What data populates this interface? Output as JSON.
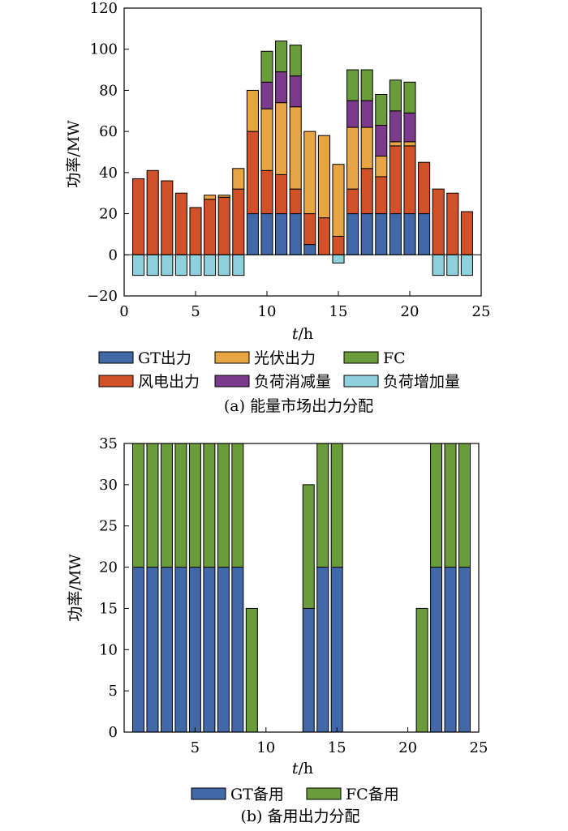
{
  "colors": {
    "gt": "#4169a8",
    "wind": "#d15129",
    "pv": "#e8a543",
    "fc": "#6b9c3b",
    "load_cut": "#7c3a8c",
    "load_add": "#8fd0dd"
  },
  "chart_data": [
    {
      "type": "bar",
      "stacked": true,
      "caption": "(a)  能量市场出力分配",
      "ylabel": "功率/MW",
      "xlabel_italic": "t",
      "xlabel_unit": "/h",
      "xlim": [
        0,
        25
      ],
      "ylim": [
        -20,
        120
      ],
      "xticks": [
        "0",
        "5",
        "10",
        "15",
        "20",
        "25"
      ],
      "yticks": [
        "−20",
        "0",
        "20",
        "40",
        "60",
        "80",
        "100",
        "120"
      ],
      "x": [
        1,
        2,
        3,
        4,
        5,
        6,
        7,
        8,
        9,
        10,
        11,
        12,
        13,
        14,
        15,
        16,
        17,
        18,
        19,
        20,
        21,
        22,
        23,
        24
      ],
      "legend_rows": [
        [
          "gt",
          "pv",
          "fc"
        ],
        [
          "wind",
          "load_cut",
          "load_add"
        ]
      ],
      "series": [
        {
          "key": "gt",
          "name": "GT出力",
          "values": [
            0,
            0,
            0,
            0,
            0,
            0,
            0,
            0,
            20,
            20,
            20,
            20,
            5,
            0,
            0,
            20,
            20,
            20,
            20,
            20,
            20,
            0,
            0,
            0
          ]
        },
        {
          "key": "wind",
          "name": "风电出力",
          "values": [
            37,
            41,
            36,
            30,
            23,
            27,
            28,
            32,
            40,
            21,
            19,
            12,
            15,
            18,
            9,
            12,
            22,
            18,
            33,
            33,
            25,
            32,
            30,
            21
          ]
        },
        {
          "key": "pv",
          "name": "光伏出力",
          "values": [
            0,
            0,
            0,
            0,
            0,
            2,
            1,
            10,
            20,
            30,
            35,
            40,
            40,
            40,
            35,
            30,
            20,
            10,
            2,
            2,
            0,
            0,
            0,
            0
          ]
        },
        {
          "key": "load_cut",
          "name": "负荷消减量",
          "values": [
            0,
            0,
            0,
            0,
            0,
            0,
            0,
            0,
            0,
            13,
            15,
            15,
            0,
            0,
            0,
            13,
            13,
            15,
            15,
            14,
            0,
            0,
            0,
            0
          ]
        },
        {
          "key": "fc",
          "name": "FC",
          "values": [
            0,
            0,
            0,
            0,
            0,
            0,
            0,
            0,
            0,
            15,
            15,
            15,
            0,
            0,
            0,
            15,
            15,
            15,
            15,
            15,
            0,
            0,
            0,
            0
          ]
        },
        {
          "key": "load_add",
          "name": "负荷增加量",
          "values": [
            -10,
            -10,
            -10,
            -10,
            -10,
            -10,
            -10,
            -10,
            0,
            0,
            0,
            0,
            0,
            0,
            -4,
            0,
            0,
            0,
            0,
            0,
            0,
            -10,
            -10,
            -10
          ]
        }
      ]
    },
    {
      "type": "bar",
      "stacked": true,
      "caption": "(b)  备用出力分配",
      "ylabel": "功率/MW",
      "xlabel_italic": "t",
      "xlabel_unit": "/h",
      "xlim": [
        0,
        25
      ],
      "ylim": [
        0,
        35
      ],
      "xticks": [
        "5",
        "10",
        "15",
        "20",
        "25"
      ],
      "yticks": [
        "0",
        "5",
        "10",
        "15",
        "20",
        "25",
        "30",
        "35"
      ],
      "x": [
        1,
        2,
        3,
        4,
        5,
        6,
        7,
        8,
        9,
        10,
        11,
        12,
        13,
        14,
        15,
        16,
        17,
        18,
        19,
        20,
        21,
        22,
        23,
        24
      ],
      "legend_rows": [
        [
          "gt",
          "fc"
        ]
      ],
      "series": [
        {
          "key": "gt",
          "name": "GT备用",
          "values": [
            20,
            20,
            20,
            20,
            20,
            20,
            20,
            20,
            0,
            0,
            0,
            0,
            15,
            20,
            20,
            0,
            0,
            0,
            0,
            0,
            0,
            20,
            20,
            20
          ]
        },
        {
          "key": "fc",
          "name": "FC备用",
          "values": [
            15,
            15,
            15,
            15,
            15,
            15,
            15,
            15,
            15,
            0,
            0,
            0,
            15,
            15,
            15,
            0,
            0,
            0,
            0,
            0,
            15,
            15,
            15,
            15
          ]
        }
      ]
    }
  ]
}
